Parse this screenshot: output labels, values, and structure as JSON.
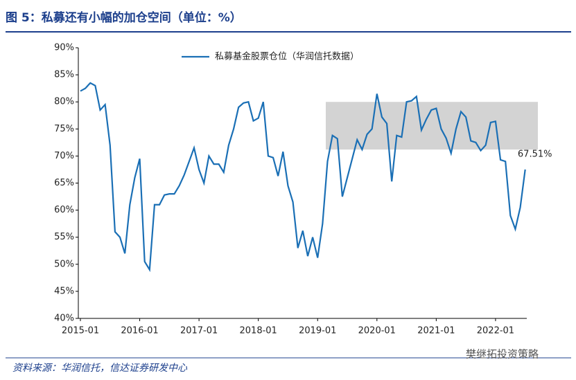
{
  "chart_data": {
    "type": "line",
    "title": "图 5：私募还有小幅的加仓空间（单位：%）",
    "source": "资料来源：华润信托，信达证券研发中心",
    "watermark": "樊继拓投资策略",
    "categories": [
      "2015-01",
      null,
      null,
      null,
      null,
      null,
      null,
      null,
      null,
      null,
      null,
      null,
      "2016-01",
      null,
      null,
      null,
      null,
      null,
      null,
      null,
      null,
      null,
      null,
      null,
      "2017-01",
      null,
      null,
      null,
      null,
      null,
      null,
      null,
      null,
      null,
      null,
      null,
      "2018-01",
      null,
      null,
      null,
      null,
      null,
      null,
      null,
      null,
      null,
      null,
      null,
      "2019-01",
      null,
      null,
      null,
      null,
      null,
      null,
      null,
      null,
      null,
      null,
      null,
      "2020-01",
      null,
      null,
      null,
      null,
      null,
      null,
      null,
      null,
      null,
      null,
      null,
      "2021-01",
      null,
      null,
      null,
      null,
      null,
      null,
      null,
      null,
      null,
      null,
      null,
      "2022-01",
      null,
      null,
      null,
      null,
      null,
      null
    ],
    "series": [
      {
        "name": "私募基金股票仓位（华润信托数据）",
        "color": "#1a6fb5",
        "values": [
          82,
          82.5,
          83.5,
          83,
          78.5,
          79.5,
          72,
          56,
          55,
          52,
          61,
          66,
          69.5,
          50.5,
          49,
          61,
          61,
          62.8,
          63,
          63,
          64.5,
          66.5,
          69,
          71.5,
          67.5,
          65,
          70,
          68.5,
          68.5,
          67,
          72,
          75,
          79,
          79.8,
          80,
          76.5,
          77,
          80,
          70,
          69.7,
          66.3,
          70.8,
          64.5,
          61.5,
          53,
          56.2,
          51.5,
          55,
          51.2,
          57.5,
          69,
          73.8,
          73.2,
          62.5,
          66,
          69.5,
          73,
          71.2,
          74,
          75,
          81.5,
          77.2,
          76,
          65.3,
          73.8,
          73.5,
          80,
          80.2,
          81,
          74.8,
          76.8,
          78.5,
          78.8,
          75,
          73.3,
          70.5,
          75,
          78.2,
          77.2,
          72.8,
          72.5,
          71,
          72,
          76.2,
          76.4,
          69.3,
          69,
          59,
          56.5,
          60.5,
          67.51
        ],
        "value_labels": [
          null,
          null,
          null,
          null,
          null,
          null,
          null,
          null,
          null,
          null,
          null,
          null,
          null,
          null,
          null,
          null,
          null,
          null,
          null,
          null,
          null,
          null,
          null,
          null,
          null,
          null,
          null,
          null,
          null,
          null,
          null,
          null,
          null,
          null,
          null,
          null,
          null,
          null,
          null,
          null,
          null,
          null,
          null,
          null,
          null,
          null,
          null,
          null,
          null,
          null,
          null,
          null,
          null,
          null,
          null,
          null,
          null,
          null,
          null,
          null,
          null,
          null,
          null,
          null,
          null,
          null,
          null,
          null,
          null,
          null,
          null,
          null,
          null,
          null,
          null,
          null,
          null,
          null,
          null,
          null,
          null,
          null,
          null,
          null,
          null,
          null,
          null,
          null,
          null,
          null,
          "67.51%"
        ]
      }
    ],
    "band": {
      "ylim": [
        71.2,
        80
      ],
      "color": "#d3d3d3"
    },
    "ylim": [
      40,
      90
    ],
    "yticks": [
      {
        "value": 40,
        "label": "40%"
      },
      {
        "value": 45,
        "label": "45%"
      },
      {
        "value": 50,
        "label": "50%"
      },
      {
        "value": 55,
        "label": "55%"
      },
      {
        "value": 60,
        "label": "60%"
      },
      {
        "value": 65,
        "label": "65%"
      },
      {
        "value": 70,
        "label": "70%"
      },
      {
        "value": 75,
        "label": "75%"
      },
      {
        "value": 80,
        "label": "80%"
      },
      {
        "value": 85,
        "label": "85%"
      },
      {
        "value": 90,
        "label": "90%"
      }
    ],
    "legend": "top"
  }
}
